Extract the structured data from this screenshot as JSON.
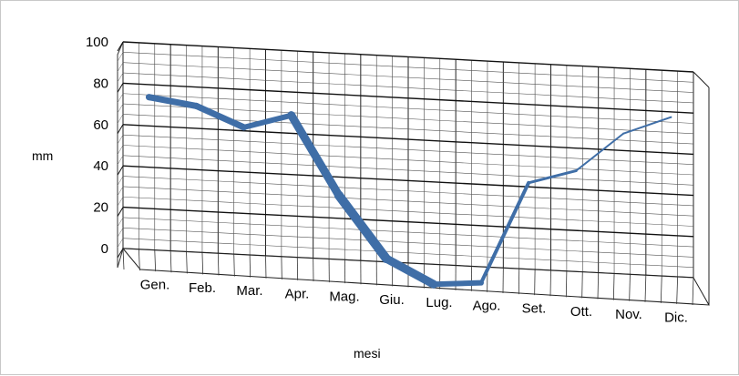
{
  "chart_data": {
    "type": "line",
    "title": "",
    "xlabel": "mesi",
    "ylabel": "mm",
    "ylim": [
      0,
      100
    ],
    "yticks": [
      "0",
      "20",
      "40",
      "60",
      "80",
      "100"
    ],
    "categories": [
      "Gen.",
      "Feb.",
      "Mar.",
      "Apr.",
      "Mag.",
      "Giu.",
      "Lug.",
      "Ago.",
      "Set.",
      "Ott.",
      "Nov.",
      "Dic."
    ],
    "series": [
      {
        "values": [
          76,
          73,
          64,
          71,
          34,
          5,
          -6,
          -4,
          45,
          52,
          71,
          80
        ]
      }
    ],
    "grid": true,
    "style": "3d-line",
    "line_color": "#3f6ea7"
  }
}
